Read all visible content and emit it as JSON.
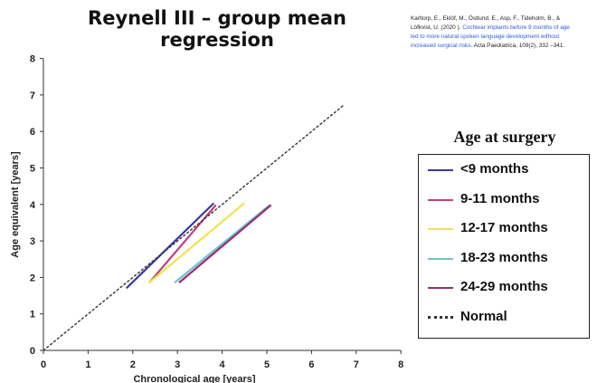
{
  "header": {
    "title": "Reynell III – group mean regression"
  },
  "citation": {
    "authors_line1": "Karltorp, E., Eklöf, M., Östlund, E., Asp, F., Tideholm, B., &",
    "authors_line2": "Löfkvist, U. (2020 ).",
    "link_line1": "Cochlear implants before 9 months of age",
    "link_line2": "led to more natural spoken language development without",
    "link_line3": "increased surgical risks",
    "journal": ". Acta Paediatrica, 109(2), 332 –341."
  },
  "legend": {
    "title": "Age at surgery",
    "items": [
      {
        "label": "<9 months",
        "color": "#3a3a9c",
        "style": "solid"
      },
      {
        "label": "9-11 months",
        "color": "#c43f7e",
        "style": "solid"
      },
      {
        "label": "12-17 months",
        "color": "#f3e24f",
        "style": "solid"
      },
      {
        "label": "18-23 months",
        "color": "#6fc6c6",
        "style": "solid"
      },
      {
        "label": "24-29 months",
        "color": "#9b2a7a",
        "style": "solid"
      },
      {
        "label": "Normal",
        "color": "#333333",
        "style": "dotted"
      }
    ]
  },
  "chart_data": {
    "type": "line",
    "title": "Reynell III – group mean regression",
    "xlabel": "Chronological age [years]",
    "ylabel": "Age equivalent [years]",
    "xlim": [
      0,
      8
    ],
    "ylim": [
      0,
      8
    ],
    "xticks": [
      "0",
      "1",
      "2",
      "3",
      "4",
      "5",
      "6",
      "7",
      "8"
    ],
    "yticks": [
      "0",
      "1",
      "2",
      "3",
      "4",
      "5",
      "6",
      "7",
      "8"
    ],
    "grid": false,
    "legend_position": "right",
    "series": [
      {
        "name": "<9 months",
        "color": "#3a3a9c",
        "style": "solid",
        "x": [
          1.87,
          3.8
        ],
        "y": [
          1.72,
          4.02
        ]
      },
      {
        "name": "9-11 months",
        "color": "#c43f7e",
        "style": "solid",
        "x": [
          2.38,
          3.85
        ],
        "y": [
          1.87,
          3.97
        ]
      },
      {
        "name": "12-17 months",
        "color": "#f3e24f",
        "style": "solid",
        "x": [
          2.38,
          4.48
        ],
        "y": [
          1.87,
          4.02
        ]
      },
      {
        "name": "18-23 months",
        "color": "#6fc6c6",
        "style": "solid",
        "x": [
          2.95,
          5.05
        ],
        "y": [
          1.87,
          3.97
        ]
      },
      {
        "name": "24-29 months",
        "color": "#9b2a7a",
        "style": "solid",
        "x": [
          3.05,
          5.08
        ],
        "y": [
          1.87,
          3.97
        ]
      },
      {
        "name": "Normal",
        "color": "#333333",
        "style": "dotted",
        "x": [
          0,
          6.7
        ],
        "y": [
          0,
          6.7
        ]
      }
    ]
  }
}
